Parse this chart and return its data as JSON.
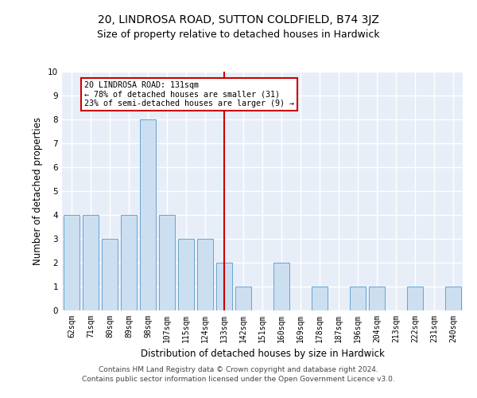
{
  "title": "20, LINDROSA ROAD, SUTTON COLDFIELD, B74 3JZ",
  "subtitle": "Size of property relative to detached houses in Hardwick",
  "xlabel": "Distribution of detached houses by size in Hardwick",
  "ylabel": "Number of detached properties",
  "categories": [
    "62sqm",
    "71sqm",
    "80sqm",
    "89sqm",
    "98sqm",
    "107sqm",
    "115sqm",
    "124sqm",
    "133sqm",
    "142sqm",
    "151sqm",
    "160sqm",
    "169sqm",
    "178sqm",
    "187sqm",
    "196sqm",
    "204sqm",
    "213sqm",
    "222sqm",
    "231sqm",
    "240sqm"
  ],
  "values": [
    4,
    4,
    3,
    4,
    8,
    4,
    3,
    3,
    2,
    1,
    0,
    2,
    0,
    1,
    0,
    1,
    1,
    0,
    1,
    0,
    1
  ],
  "bar_color": "#ccdff0",
  "bar_edge_color": "#5599cc",
  "highlight_index": 8,
  "highlight_line_color": "#cc0000",
  "ylim": [
    0,
    10
  ],
  "yticks": [
    0,
    1,
    2,
    3,
    4,
    5,
    6,
    7,
    8,
    9,
    10
  ],
  "annotation_text": "20 LINDROSA ROAD: 131sqm\n← 78% of detached houses are smaller (31)\n23% of semi-detached houses are larger (9) →",
  "annotation_box_color": "#cc0000",
  "footer_line1": "Contains HM Land Registry data © Crown copyright and database right 2024.",
  "footer_line2": "Contains public sector information licensed under the Open Government Licence v3.0.",
  "background_color": "#e8eef8",
  "grid_color": "#ffffff",
  "title_fontsize": 10,
  "subtitle_fontsize": 9,
  "tick_fontsize": 7,
  "ylabel_fontsize": 8.5,
  "xlabel_fontsize": 8.5
}
